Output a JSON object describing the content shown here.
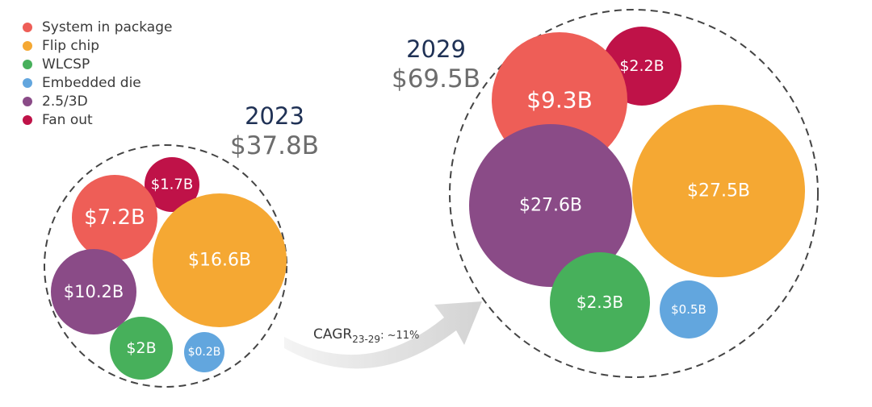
{
  "chart_data": {
    "type": "bubble",
    "legend": [
      {
        "name": "System in package",
        "color": "#ee5e57"
      },
      {
        "name": "Flip chip",
        "color": "#f5a833"
      },
      {
        "name": "WLCSP",
        "color": "#47b05b"
      },
      {
        "name": "Embedded die",
        "color": "#62a6de"
      },
      {
        "name": "2.5/3D",
        "color": "#8a4b87"
      },
      {
        "name": "Fan out",
        "color": "#bf1248"
      }
    ],
    "groups": [
      {
        "year": "2023",
        "total": "$37.8B",
        "bubbles": [
          {
            "series": "Fan out",
            "value": 1.7,
            "label": "$1.7B"
          },
          {
            "series": "System in package",
            "value": 7.2,
            "label": "$7.2B"
          },
          {
            "series": "Flip chip",
            "value": 16.6,
            "label": "$16.6B"
          },
          {
            "series": "2.5/3D",
            "value": 10.2,
            "label": "$10.2B"
          },
          {
            "series": "WLCSP",
            "value": 2,
            "label": "$2B"
          },
          {
            "series": "Embedded die",
            "value": 0.2,
            "label": "$0.2B"
          }
        ]
      },
      {
        "year": "2029",
        "total": "$69.5B",
        "bubbles": [
          {
            "series": "Fan out",
            "value": 2.2,
            "label": "$2.2B"
          },
          {
            "series": "System in package",
            "value": 9.3,
            "label": "$9.3B"
          },
          {
            "series": "2.5/3D",
            "value": 27.6,
            "label": "$27.6B"
          },
          {
            "series": "Flip chip",
            "value": 27.5,
            "label": "$27.5B"
          },
          {
            "series": "WLCSP",
            "value": 2.3,
            "label": "$2.3B"
          },
          {
            "series": "Embedded die",
            "value": 0.5,
            "label": "$0.5B"
          }
        ]
      }
    ],
    "cagr": {
      "prefix": "CAGR",
      "subscript": "23-29",
      "suffix": ": ~11%"
    }
  }
}
